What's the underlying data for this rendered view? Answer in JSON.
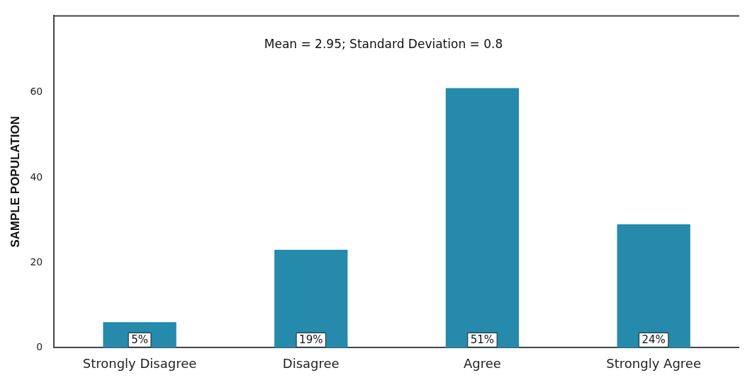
{
  "chart_data": {
    "type": "bar",
    "ylabel": "SAMPLE POPULATION",
    "categories": [
      "Strongly Disagree",
      "Disagree",
      "Agree",
      "Strongly Agree"
    ],
    "values": [
      6,
      23,
      61,
      29
    ],
    "color": "#258aab",
    "annotations": [
      "Mean = 2.95; Standard Deviation = 0.8",
      {
        "text": "5%",
        "x": "Strongly Disagree",
        "y": 0
      },
      {
        "text": "19%",
        "x": "Disagree",
        "y": 0
      },
      {
        "text": "51%",
        "x": "Agree",
        "y": 0
      },
      {
        "text": "24%",
        "x": "Strongly Agree",
        "y": 0
      }
    ],
    "ylim": [
      0,
      78
    ],
    "yticks": [
      0,
      20,
      40,
      60
    ],
    "grid": false,
    "legend": false
  }
}
